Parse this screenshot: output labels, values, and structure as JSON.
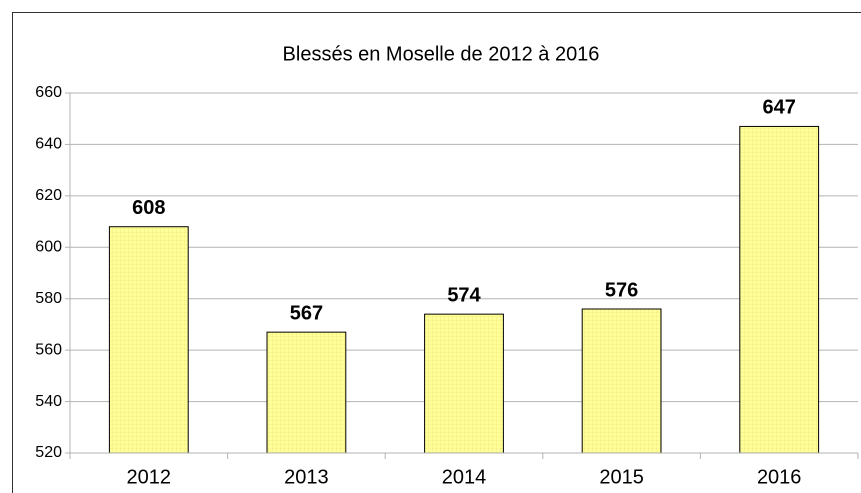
{
  "chart_data": {
    "type": "bar",
    "title": "Blessés en Moselle de 2012 à 2016",
    "categories": [
      "2012",
      "2013",
      "2014",
      "2015",
      "2016"
    ],
    "values": [
      608,
      567,
      574,
      576,
      647
    ],
    "color": "#ffff99",
    "ylim": [
      520,
      660
    ],
    "yticks": [
      520,
      540,
      560,
      580,
      600,
      620,
      640,
      660
    ],
    "grid": true
  }
}
